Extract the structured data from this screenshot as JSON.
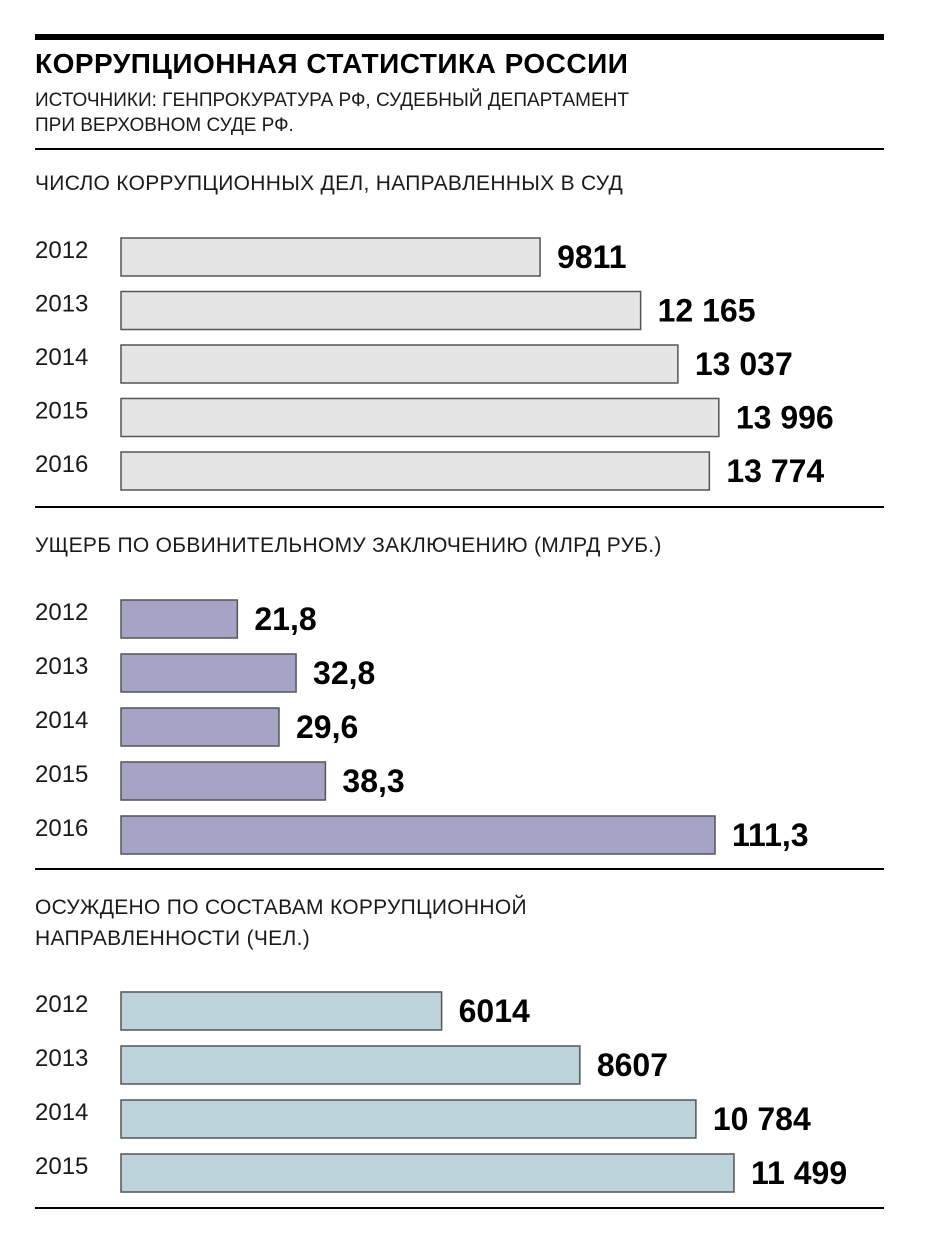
{
  "header": {
    "title": "КОРРУПЦИОННАЯ СТАТИСТИКА РОССИИ",
    "source_line1": "ИСТОЧНИКИ: ГЕНПРОКУРАТУРА РФ, СУДЕБНЫЙ ДЕПАРТАМЕНТ",
    "source_line2": "ПРИ ВЕРХОВНОМ СУДЕ РФ."
  },
  "colors": {
    "cases_bar": "#e5e5e5",
    "damage_bar": "#a5a4c6",
    "convicted_bar": "#bdd3db",
    "bar_border": "#555555"
  },
  "chart_data": [
    {
      "type": "bar",
      "orientation": "horizontal",
      "title": "ЧИСЛО КОРРУПЦИОННЫХ  ДЕЛ, НАПРАВЛЕННЫХ В СУД",
      "categories": [
        "2012",
        "2013",
        "2014",
        "2015",
        "2016"
      ],
      "values": [
        9811,
        12165,
        13037,
        13996,
        13774
      ],
      "value_labels": [
        "9811",
        "12 165",
        "13 037",
        "13 996",
        "13 774"
      ],
      "xlim": [
        0,
        14000
      ],
      "grid": false
    },
    {
      "type": "bar",
      "orientation": "horizontal",
      "title": "УЩЕРБ ПО ОБВИНИТЕЛЬНОМУ ЗАКЛЮЧЕНИЮ (МЛРД РУБ.)",
      "categories": [
        "2012",
        "2013",
        "2014",
        "2015",
        "2016"
      ],
      "values": [
        21.8,
        32.8,
        29.6,
        38.3,
        111.3
      ],
      "value_labels": [
        "21,8",
        "32,8",
        "29,6",
        "38,3",
        "111,3"
      ],
      "xlim": [
        0,
        111.3
      ],
      "grid": false
    },
    {
      "type": "bar",
      "orientation": "horizontal",
      "title_line1": "ОСУЖДЕНО ПО СОСТАВАМ КОРРУПЦИОННОЙ",
      "title_line2": "НАПРАВЛЕННОСТИ (ЧЕЛ.)",
      "categories": [
        "2012",
        "2013",
        "2014",
        "2015"
      ],
      "values": [
        6014,
        8607,
        10784,
        11499
      ],
      "value_labels": [
        "6014",
        "8607",
        "10 784",
        "11 499"
      ],
      "xlim": [
        0,
        11499
      ],
      "grid": false
    }
  ]
}
